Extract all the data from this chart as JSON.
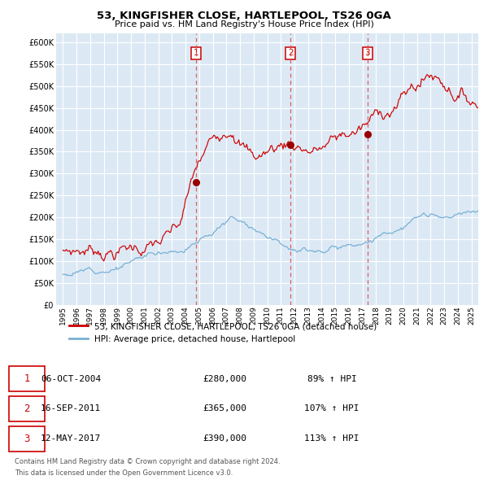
{
  "title": "53, KINGFISHER CLOSE, HARTLEPOOL, TS26 0GA",
  "subtitle": "Price paid vs. HM Land Registry's House Price Index (HPI)",
  "red_line_label": "53, KINGFISHER CLOSE, HARTLEPOOL, TS26 0GA (detached house)",
  "blue_line_label": "HPI: Average price, detached house, Hartlepool",
  "transactions": [
    {
      "num": 1,
      "date": "06-OCT-2004",
      "price": 280000,
      "hpi_pct": "89% ↑ HPI",
      "date_float": 2004.77
    },
    {
      "num": 2,
      "date": "16-SEP-2011",
      "price": 365000,
      "hpi_pct": "107% ↑ HPI",
      "date_float": 2011.71
    },
    {
      "num": 3,
      "date": "12-MAY-2017",
      "price": 390000,
      "hpi_pct": "113% ↑ HPI",
      "date_float": 2017.36
    }
  ],
  "footnote_line1": "Contains HM Land Registry data © Crown copyright and database right 2024.",
  "footnote_line2": "This data is licensed under the Open Government Licence v3.0.",
  "ylim": [
    0,
    620000
  ],
  "yticks": [
    0,
    50000,
    100000,
    150000,
    200000,
    250000,
    300000,
    350000,
    400000,
    450000,
    500000,
    550000,
    600000
  ],
  "xlim_start": 1994.5,
  "xlim_end": 2025.5,
  "background_color": "#dce9f5",
  "grid_color": "#ffffff",
  "red_color": "#cc0000",
  "blue_color": "#7ab0d4",
  "marker_color": "#990000",
  "dashed_color": "#e05050"
}
